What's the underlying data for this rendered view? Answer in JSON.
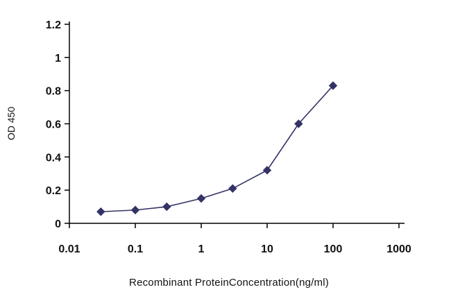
{
  "chart_data": {
    "type": "line",
    "title": "",
    "xlabel": "Recombinant ProteinConcentration(ng/ml)",
    "ylabel": "OD 450",
    "x_scale": "log",
    "xlim": [
      0.01,
      1000
    ],
    "ylim": [
      0,
      1.2
    ],
    "x_ticks": [
      0.01,
      0.1,
      1,
      10,
      100,
      1000
    ],
    "x_tick_labels": [
      "0.01",
      "0.1",
      "1",
      "10",
      "100",
      "1000"
    ],
    "y_ticks": [
      0,
      0.2,
      0.4,
      0.6,
      0.8,
      1,
      1.2
    ],
    "y_tick_labels": [
      "0",
      "0.2",
      "0.4",
      "0.6",
      "0.8",
      "1",
      "1.2"
    ],
    "grid": false,
    "legend": false,
    "series": [
      {
        "name": "OD450",
        "color": "#333366",
        "marker": "diamond",
        "x": [
          0.03,
          0.1,
          0.3,
          1,
          3,
          10,
          30,
          100
        ],
        "y": [
          0.07,
          0.08,
          0.1,
          0.15,
          0.21,
          0.32,
          0.6,
          0.83
        ]
      }
    ]
  }
}
